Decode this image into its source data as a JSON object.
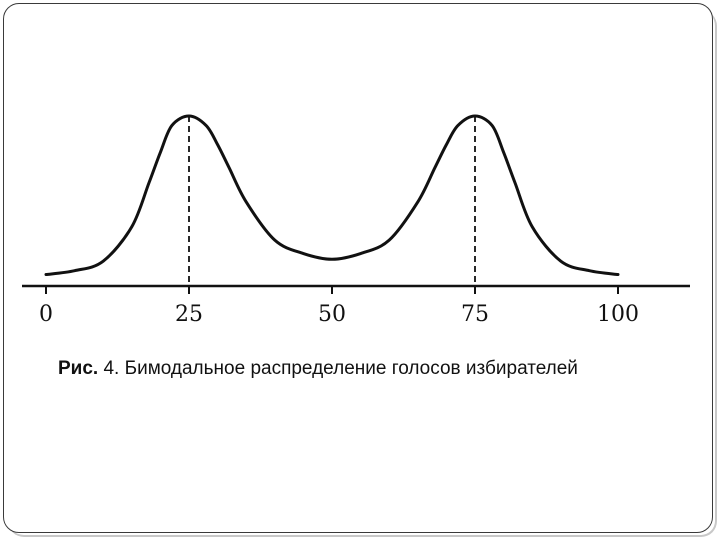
{
  "chart_data": {
    "type": "line",
    "title": "",
    "xlabel": "",
    "ylabel": "",
    "xlim": [
      0,
      100
    ],
    "ylim": [
      0,
      1
    ],
    "x_ticks": [
      "0",
      "25",
      "50",
      "75",
      "100"
    ],
    "series": [
      {
        "x": [
          0,
          5,
          10,
          15,
          18,
          20,
          22,
          25,
          28,
          30,
          32,
          35,
          40,
          45,
          50,
          55,
          60,
          65,
          68,
          70,
          72,
          75,
          78,
          80,
          82,
          85,
          90,
          95,
          100
        ],
        "y": [
          0.06,
          0.08,
          0.13,
          0.31,
          0.54,
          0.7,
          0.84,
          0.89,
          0.84,
          0.74,
          0.62,
          0.44,
          0.24,
          0.17,
          0.14,
          0.17,
          0.24,
          0.44,
          0.62,
          0.74,
          0.84,
          0.89,
          0.84,
          0.7,
          0.54,
          0.31,
          0.13,
          0.08,
          0.06
        ]
      }
    ],
    "reference_lines": [
      {
        "x": 25,
        "style": "dashed"
      },
      {
        "x": 75,
        "style": "dashed"
      }
    ],
    "grid": false,
    "line_color": "#111111"
  },
  "caption": {
    "prefix": "Рис.",
    "text": " 4. Бимодальное распределение голосов избирателей"
  }
}
